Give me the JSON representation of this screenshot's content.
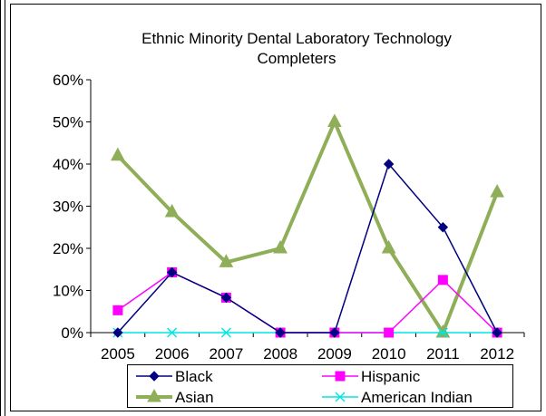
{
  "chart_data": {
    "type": "line",
    "title": "Ethnic Minority Dental Laboratory Technology Completers",
    "title_lines": [
      "Ethnic Minority Dental Laboratory Technology",
      "Completers"
    ],
    "xlabel": "",
    "ylabel": "",
    "categories": [
      "2005",
      "2006",
      "2007",
      "2008",
      "2009",
      "2010",
      "2011",
      "2012"
    ],
    "ylim": [
      0,
      60
    ],
    "yticks": [
      0,
      10,
      20,
      30,
      40,
      50,
      60
    ],
    "ytick_labels": [
      "0%",
      "10%",
      "20%",
      "30%",
      "40%",
      "50%",
      "60%"
    ],
    "grid": false,
    "legend_position": "bottom",
    "series": [
      {
        "name": "Black",
        "color": "#000080",
        "marker": "diamond",
        "values": [
          0,
          14.3,
          8.3,
          0,
          0,
          40,
          25,
          0
        ]
      },
      {
        "name": "Hispanic",
        "color": "#FF00FF",
        "marker": "square",
        "values": [
          5.3,
          14.3,
          8.3,
          0,
          0,
          0,
          12.5,
          0
        ]
      },
      {
        "name": "Asian",
        "color": "#8FAE58",
        "marker": "triangle",
        "values": [
          42,
          28.6,
          16.7,
          20,
          50,
          20,
          0,
          33.3
        ]
      },
      {
        "name": "American Indian",
        "color": "#00E5E5",
        "marker": "x",
        "values": [
          0,
          0,
          0,
          0,
          0,
          0,
          0,
          0
        ]
      }
    ]
  }
}
